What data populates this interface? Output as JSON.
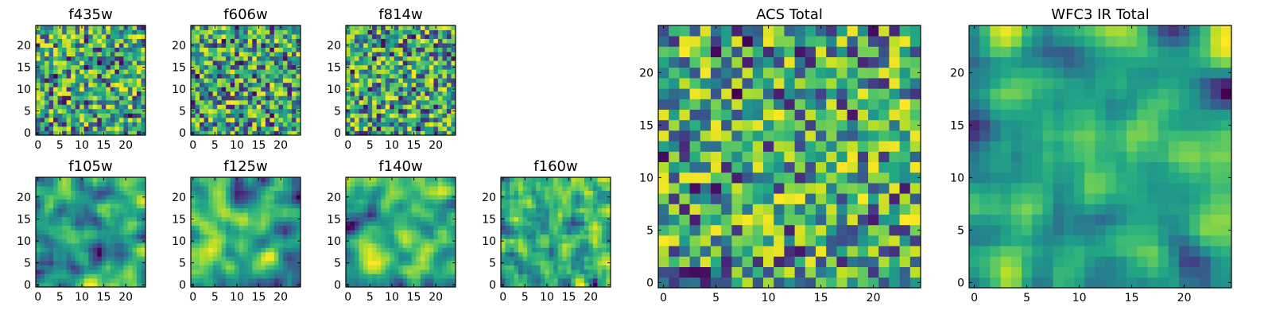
{
  "figure": {
    "description_free": true
  },
  "chart_data": [
    {
      "type": "heatmap",
      "title": "f435w",
      "xticks": [
        "0",
        "5",
        "10",
        "15",
        "20"
      ],
      "yticks": [
        "0",
        "5",
        "10",
        "15",
        "20"
      ],
      "xlim": [
        -0.5,
        24.5
      ],
      "ylim": [
        -0.5,
        24.5
      ],
      "grid_size": 25,
      "colormap": "viridis",
      "smoothness": 0,
      "seed": 11
    },
    {
      "type": "heatmap",
      "title": "f606w",
      "xticks": [
        "0",
        "5",
        "10",
        "15",
        "20"
      ],
      "yticks": [
        "0",
        "5",
        "10",
        "15",
        "20"
      ],
      "xlim": [
        -0.5,
        24.5
      ],
      "ylim": [
        -0.5,
        24.5
      ],
      "grid_size": 25,
      "colormap": "viridis",
      "smoothness": 0,
      "seed": 23
    },
    {
      "type": "heatmap",
      "title": "f814w",
      "xticks": [
        "0",
        "5",
        "10",
        "15",
        "20"
      ],
      "yticks": [
        "0",
        "5",
        "10",
        "15",
        "20"
      ],
      "xlim": [
        -0.5,
        24.5
      ],
      "ylim": [
        -0.5,
        24.5
      ],
      "grid_size": 25,
      "colormap": "viridis",
      "smoothness": 0,
      "seed": 37
    },
    {
      "type": "heatmap",
      "title": "f105w",
      "xticks": [
        "0",
        "5",
        "10",
        "15",
        "20"
      ],
      "yticks": [
        "0",
        "5",
        "10",
        "15",
        "20"
      ],
      "xlim": [
        -0.5,
        24.5
      ],
      "ylim": [
        -0.5,
        24.5
      ],
      "grid_size": 25,
      "colormap": "viridis",
      "smoothness": 2,
      "seed": 41
    },
    {
      "type": "heatmap",
      "title": "f125w",
      "xticks": [
        "0",
        "5",
        "10",
        "15",
        "20"
      ],
      "yticks": [
        "0",
        "5",
        "10",
        "15",
        "20"
      ],
      "xlim": [
        -0.5,
        24.5
      ],
      "ylim": [
        -0.5,
        24.5
      ],
      "grid_size": 25,
      "colormap": "viridis",
      "smoothness": 2,
      "seed": 53
    },
    {
      "type": "heatmap",
      "title": "f140w",
      "xticks": [
        "0",
        "5",
        "10",
        "15",
        "20"
      ],
      "yticks": [
        "0",
        "5",
        "10",
        "15",
        "20"
      ],
      "xlim": [
        -0.5,
        24.5
      ],
      "ylim": [
        -0.5,
        24.5
      ],
      "grid_size": 25,
      "colormap": "viridis",
      "smoothness": 2,
      "seed": 67
    },
    {
      "type": "heatmap",
      "title": "f160w",
      "xticks": [
        "0",
        "5",
        "10",
        "15",
        "20"
      ],
      "yticks": [
        "0",
        "5",
        "10",
        "15",
        "20"
      ],
      "xlim": [
        -0.5,
        24.5
      ],
      "ylim": [
        -0.5,
        24.5
      ],
      "grid_size": 25,
      "colormap": "viridis",
      "smoothness": 1,
      "seed": 79
    },
    {
      "type": "heatmap",
      "title": "ACS Total",
      "xticks": [
        "0",
        "5",
        "10",
        "15",
        "20"
      ],
      "yticks": [
        "0",
        "5",
        "10",
        "15",
        "20"
      ],
      "xlim": [
        -0.5,
        24.5
      ],
      "ylim": [
        -0.5,
        24.5
      ],
      "grid_size": 25,
      "colormap": "viridis",
      "smoothness": 0,
      "seed": 97
    },
    {
      "type": "heatmap",
      "title": "WFC3 IR Total",
      "xticks": [
        "0",
        "5",
        "10",
        "15",
        "20"
      ],
      "yticks": [
        "0",
        "5",
        "10",
        "15",
        "20"
      ],
      "xlim": [
        -0.5,
        24.5
      ],
      "ylim": [
        -0.5,
        24.5
      ],
      "grid_size": 25,
      "colormap": "viridis",
      "smoothness": 2,
      "seed": 113
    }
  ]
}
